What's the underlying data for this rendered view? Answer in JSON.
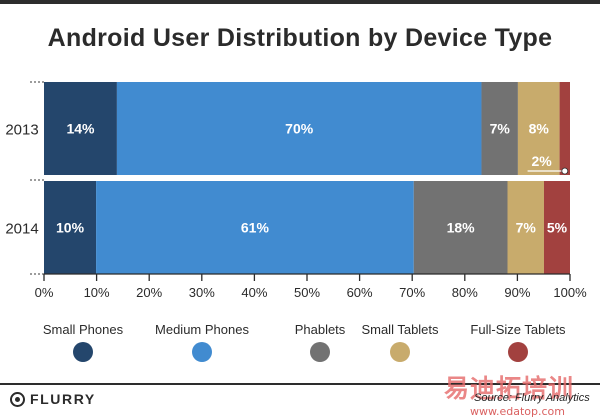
{
  "chart_data": {
    "type": "bar",
    "orientation": "horizontal",
    "stacked": true,
    "percent_scale": true,
    "title": "Android User Distribution by Device Type",
    "categories": [
      "2013",
      "2014"
    ],
    "series": [
      {
        "name": "Small Phones",
        "color": "#24466c",
        "values": [
          14,
          10
        ],
        "labels": [
          "14%",
          "10%"
        ]
      },
      {
        "name": "Medium Phones",
        "color": "#418bd0",
        "values": [
          70,
          61
        ],
        "labels": [
          "70%",
          "61%"
        ]
      },
      {
        "name": "Phablets",
        "color": "#727272",
        "values": [
          7,
          18
        ],
        "labels": [
          "7%",
          "18%"
        ]
      },
      {
        "name": "Small Tablets",
        "color": "#c8ab6c",
        "values": [
          8,
          7
        ],
        "labels": [
          "8%",
          "7%"
        ]
      },
      {
        "name": "Full-Size Tablets",
        "color": "#a2413f",
        "values": [
          2,
          5
        ],
        "labels": [
          "2%",
          "5%"
        ]
      }
    ],
    "callouts": [
      {
        "category": "2013",
        "series": "Full-Size Tablets",
        "text": "2%"
      }
    ],
    "x_ticks": [
      "0%",
      "10%",
      "20%",
      "30%",
      "40%",
      "50%",
      "60%",
      "70%",
      "80%",
      "90%",
      "100%"
    ],
    "xlim": [
      0,
      100
    ],
    "legend_position": "bottom"
  },
  "footer": {
    "brand": "FLURRY",
    "source": "Source: Flurry Analytics",
    "watermark": "易迪拓培训",
    "site": "www.edatop.com"
  }
}
